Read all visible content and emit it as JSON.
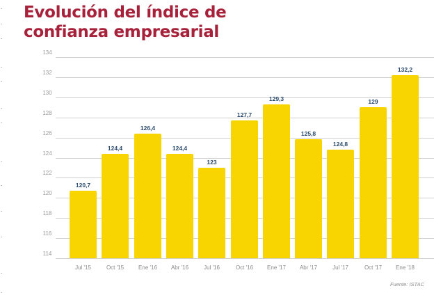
{
  "title_line1": "Evolución del índice de",
  "title_line2": "confianza empresarial",
  "source": "Fuente: ISTAC",
  "colors": {
    "title": "#a8213a",
    "bar": "#f8d500",
    "data_label": "#2a4a6e",
    "grid": "#cfcfcf"
  },
  "chart_data": {
    "type": "bar",
    "title": "Evolución del índice de confianza empresarial",
    "xlabel": "",
    "ylabel": "",
    "ylim": [
      114,
      134
    ],
    "yticks": [
      134,
      132,
      130,
      128,
      126,
      124,
      122,
      120,
      118,
      116,
      114
    ],
    "grid": true,
    "legend": null,
    "categories": [
      "Jul '15",
      "Oct '15",
      "Ene '16",
      "Abr '16",
      "Jul '16",
      "Oct '16",
      "Ene '17",
      "Abr '17",
      "Jul '17",
      "Oct '17",
      "Ene '18"
    ],
    "values": [
      120.7,
      124.4,
      126.4,
      124.4,
      123,
      127.7,
      129.3,
      125.8,
      124.8,
      129,
      132.2
    ],
    "labels": [
      "120,7",
      "124,4",
      "126,4",
      "124,4",
      "123",
      "127,7",
      "129,3",
      "125,8",
      "124,8",
      "129",
      "132,2"
    ],
    "annotations": [
      "Fuente: ISTAC"
    ]
  }
}
